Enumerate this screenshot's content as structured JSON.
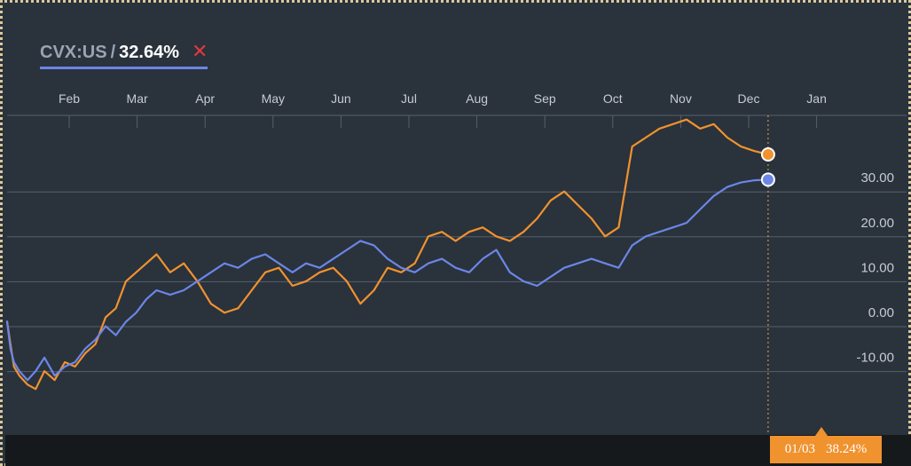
{
  "legend": {
    "ticker": "CVX:US",
    "separator": "/",
    "value": "32.64%",
    "close_glyph": "✕"
  },
  "tooltip": {
    "date": "01/03",
    "value": "38.24%"
  },
  "colors": {
    "background": "#2a323c",
    "grid": "#56606b",
    "axis_text": "#c6ccd4",
    "series_blue": "#6b86e6",
    "series_orange": "#f0922e",
    "crosshair": "#e3b04b"
  },
  "chart_data": {
    "type": "line",
    "title": "",
    "xlabel": "",
    "ylabel": "",
    "x_ticks": [
      "Feb",
      "Mar",
      "Apr",
      "May",
      "Jun",
      "Jul",
      "Aug",
      "Sep",
      "Oct",
      "Nov",
      "Dec",
      "Jan"
    ],
    "y_ticks": [
      30,
      20,
      10,
      0,
      -10
    ],
    "y_tick_labels": [
      "30.00",
      "20.00",
      "10.00",
      "0.00",
      "-10.00"
    ],
    "ylim": [
      -19,
      50
    ],
    "grid": true,
    "series": [
      {
        "color": "#6b86e6",
        "end_value": 32.64,
        "x_months": [
          0.0,
          0.05,
          0.1,
          0.18,
          0.3,
          0.42,
          0.55,
          0.7,
          0.85,
          1.0,
          1.15,
          1.3,
          1.45,
          1.6,
          1.75,
          1.9,
          2.05,
          2.2,
          2.4,
          2.6,
          2.8,
          3.0,
          3.2,
          3.4,
          3.6,
          3.8,
          4.0,
          4.2,
          4.4,
          4.6,
          4.8,
          5.0,
          5.2,
          5.4,
          5.6,
          5.8,
          6.0,
          6.2,
          6.4,
          6.6,
          6.8,
          7.0,
          7.2,
          7.4,
          7.6,
          7.8,
          8.0,
          8.2,
          8.4,
          8.6,
          8.8,
          9.0,
          9.2,
          9.4,
          9.6,
          9.8,
          10.0,
          10.2,
          10.4,
          10.6,
          10.8,
          11.0,
          11.2
        ],
        "values": [
          1,
          -5,
          -8,
          -10,
          -12,
          -10,
          -7,
          -11,
          -9,
          -8,
          -5,
          -3,
          0,
          -2,
          1,
          3,
          6,
          8,
          7,
          8,
          10,
          12,
          14,
          13,
          15,
          16,
          14,
          12,
          14,
          13,
          15,
          17,
          19,
          18,
          15,
          13,
          12,
          14,
          15,
          13,
          12,
          15,
          17,
          12,
          10,
          9,
          11,
          13,
          14,
          15,
          14,
          13,
          18,
          20,
          21,
          22,
          23,
          26,
          29,
          31,
          32,
          32.5,
          32.64
        ]
      },
      {
        "color": "#f0922e",
        "end_value": 38.24,
        "x_months": [
          0.0,
          0.05,
          0.1,
          0.18,
          0.3,
          0.42,
          0.55,
          0.7,
          0.85,
          1.0,
          1.15,
          1.3,
          1.45,
          1.6,
          1.75,
          1.9,
          2.05,
          2.2,
          2.4,
          2.6,
          2.8,
          3.0,
          3.2,
          3.4,
          3.6,
          3.8,
          4.0,
          4.2,
          4.4,
          4.6,
          4.8,
          5.0,
          5.2,
          5.4,
          5.6,
          5.8,
          6.0,
          6.2,
          6.4,
          6.6,
          6.8,
          7.0,
          7.2,
          7.4,
          7.6,
          7.8,
          8.0,
          8.2,
          8.4,
          8.6,
          8.8,
          9.0,
          9.2,
          9.4,
          9.6,
          9.8,
          10.0,
          10.2,
          10.4,
          10.6,
          10.8,
          11.0,
          11.2
        ],
        "values": [
          1,
          -4,
          -9,
          -11,
          -13,
          -14,
          -10,
          -12,
          -8,
          -9,
          -6,
          -4,
          2,
          4,
          10,
          12,
          14,
          16,
          12,
          14,
          10,
          5,
          3,
          4,
          8,
          12,
          13,
          9,
          10,
          12,
          13,
          10,
          5,
          8,
          13,
          12,
          14,
          20,
          21,
          19,
          21,
          22,
          20,
          19,
          21,
          24,
          28,
          30,
          27,
          24,
          20,
          22,
          40,
          42,
          44,
          45,
          46,
          44,
          45,
          42,
          40,
          39,
          38.24
        ]
      }
    ]
  }
}
